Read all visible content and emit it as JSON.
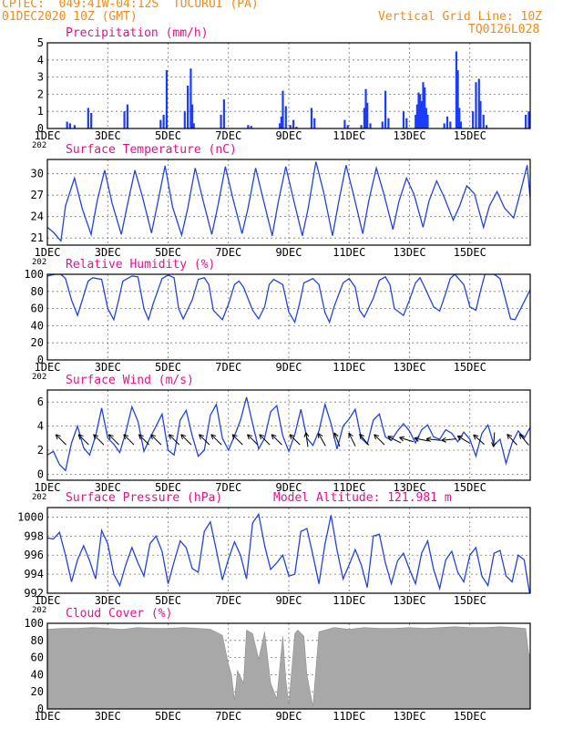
{
  "header": {
    "line1": "CPTEC:  049:41W-04:12S  TUCURUI (PA)",
    "line2": "01DEC2020 10Z (GMT)",
    "grid_note": "Vertical Grid Line: 10Z",
    "run_id": "TQ0126L028"
  },
  "colors": {
    "header": "#f28a18",
    "panel_title": "#e5108c",
    "series_line": "#2244dd",
    "precip_bar": "#1a3cff",
    "cloud_fill": "#a8a8a8",
    "wind_arrow": "#000000",
    "grid": "#777777"
  },
  "x_axis": {
    "start": "01DEC",
    "end": "16DEC",
    "tick_labels": [
      "1DEC",
      "3DEC",
      "5DEC",
      "7DEC",
      "9DEC",
      "11DEC",
      "13DEC",
      "15DEC"
    ],
    "tick_days": [
      0,
      2,
      4,
      6,
      8,
      10,
      12,
      14
    ],
    "clipped_year_label": "202"
  },
  "chart_data": [
    {
      "type": "bar",
      "title": "Precipitation (mm/h)",
      "ylim": [
        0,
        5
      ],
      "yticks": [
        0,
        1,
        2,
        3,
        4,
        5
      ],
      "x_unit": "days after 01DEC 10Z",
      "x": [
        0.65,
        0.75,
        0.9,
        1.35,
        1.45,
        2.55,
        2.65,
        3.75,
        3.85,
        3.95,
        4.55,
        4.65,
        4.75,
        4.8,
        4.85,
        5.75,
        5.85,
        6.65,
        6.75,
        7.7,
        7.75,
        7.8,
        7.9,
        8.05,
        8.15,
        8.25,
        8.75,
        8.85,
        9.85,
        9.95,
        10.4,
        10.5,
        10.55,
        10.6,
        10.7,
        11.1,
        11.2,
        11.3,
        11.8,
        11.9,
        12.2,
        12.25,
        12.3,
        12.35,
        12.4,
        12.45,
        12.5,
        12.55,
        12.6,
        13.15,
        13.25,
        13.35,
        13.55,
        13.6,
        13.65,
        13.7,
        14.1,
        14.2,
        14.3,
        14.35,
        14.45,
        14.55,
        15.85,
        15.95
      ],
      "values": [
        0.4,
        0.3,
        0.2,
        1.2,
        0.9,
        1.0,
        1.4,
        0.5,
        0.8,
        3.4,
        1.0,
        2.5,
        3.5,
        1.4,
        0.3,
        0.8,
        1.7,
        0.2,
        0.15,
        0.3,
        0.7,
        2.2,
        1.3,
        0.2,
        0.5,
        0.1,
        1.2,
        0.6,
        0.5,
        0.2,
        0.2,
        1.2,
        2.3,
        1.5,
        0.3,
        0.4,
        2.2,
        0.6,
        1.0,
        0.6,
        0.8,
        1.4,
        2.1,
        2.0,
        1.6,
        2.7,
        2.4,
        1.2,
        0.8,
        0.3,
        0.7,
        0.4,
        4.5,
        3.4,
        1.2,
        0.4,
        1.0,
        2.7,
        2.9,
        1.6,
        0.8,
        0.2,
        0.8,
        1.0
      ]
    },
    {
      "type": "line",
      "title": "Surface Temperature (nC)",
      "ylim": [
        20,
        32
      ],
      "yticks": [
        21,
        24,
        27,
        30
      ],
      "series": [
        {
          "x": [
            0,
            0.2,
            0.4,
            0.45,
            0.6,
            0.9,
            1.15,
            1.45,
            1.65,
            1.9,
            2.15,
            2.45,
            2.65,
            2.9,
            3.15,
            3.45,
            3.65,
            3.9,
            4.15,
            4.45,
            4.65,
            4.9,
            5.15,
            5.45,
            5.65,
            5.9,
            6.15,
            6.45,
            6.65,
            6.9,
            7.15,
            7.45,
            7.65,
            7.9,
            8.15,
            8.45,
            8.65,
            8.9,
            9.15,
            9.45,
            9.65,
            9.9,
            10.15,
            10.45,
            10.65,
            10.9,
            11.15,
            11.45,
            11.65,
            11.9,
            12.15,
            12.45,
            12.65,
            12.9,
            13.15,
            13.45,
            13.65,
            13.9,
            14.15,
            14.45,
            14.65,
            14.9,
            15.15,
            15.45,
            15.65,
            15.9,
            16
          ],
          "y": [
            22.5,
            21.8,
            20.8,
            20.6,
            25.5,
            29.4,
            25.2,
            21.5,
            26.2,
            30.5,
            25.8,
            21.5,
            25.6,
            30.5,
            26.8,
            21.7,
            25.8,
            31.1,
            25.3,
            21.4,
            25.1,
            30.8,
            26.4,
            21.5,
            25.5,
            31.0,
            26.5,
            21.6,
            25.2,
            30.8,
            26.5,
            21.3,
            26.0,
            31.0,
            26.5,
            21.3,
            25.3,
            31.7,
            27.5,
            21.3,
            26.0,
            31.2,
            27.0,
            21.6,
            26.2,
            30.8,
            27.2,
            22.2,
            26.1,
            29.4,
            27.1,
            22.5,
            26.2,
            29.0,
            26.7,
            23.5,
            25.4,
            28.3,
            27.2,
            22.5,
            25.5,
            27.5,
            25.2,
            23.8,
            27.0,
            31.2,
            26.5
          ]
        }
      ]
    },
    {
      "type": "line",
      "title": "Relative Humidity (%)",
      "ylim": [
        0,
        100
      ],
      "yticks": [
        0,
        20,
        40,
        60,
        80,
        100
      ],
      "series": [
        {
          "x": [
            0,
            0.25,
            0.45,
            0.6,
            0.8,
            1.0,
            1.2,
            1.35,
            1.5,
            1.8,
            2.0,
            2.2,
            2.35,
            2.5,
            2.8,
            3.0,
            3.2,
            3.35,
            3.5,
            3.8,
            4.0,
            4.2,
            4.35,
            4.5,
            4.8,
            5.0,
            5.2,
            5.35,
            5.5,
            5.8,
            6.0,
            6.2,
            6.35,
            6.5,
            6.8,
            7.0,
            7.2,
            7.35,
            7.5,
            7.8,
            8.0,
            8.2,
            8.35,
            8.5,
            8.8,
            9.0,
            9.2,
            9.35,
            9.5,
            9.8,
            10.0,
            10.2,
            10.35,
            10.5,
            10.8,
            11.0,
            11.2,
            11.35,
            11.5,
            11.8,
            12.0,
            12.2,
            12.35,
            12.5,
            12.8,
            13.0,
            13.2,
            13.35,
            13.5,
            13.8,
            14.0,
            14.2,
            14.35,
            14.5,
            14.8,
            15.0,
            15.2,
            15.35,
            15.5,
            15.8,
            16.0
          ],
          "y": [
            98,
            100,
            100,
            95,
            70,
            52,
            75,
            92,
            96,
            94,
            60,
            47,
            68,
            92,
            98,
            97,
            60,
            47,
            65,
            95,
            99,
            96,
            60,
            48,
            70,
            94,
            96,
            88,
            58,
            47,
            65,
            88,
            92,
            85,
            58,
            48,
            62,
            88,
            94,
            88,
            56,
            44,
            65,
            90,
            95,
            88,
            55,
            44,
            62,
            90,
            95,
            85,
            58,
            50,
            72,
            93,
            97,
            88,
            60,
            52,
            70,
            90,
            96,
            85,
            62,
            57,
            78,
            95,
            100,
            88,
            62,
            58,
            80,
            100,
            100,
            95,
            68,
            48,
            47,
            68,
            82
          ]
        }
      ]
    },
    {
      "type": "line",
      "title": "Surface Wind (m/s)",
      "ylim": [
        -0.5,
        7
      ],
      "yticks": [
        0,
        2,
        4,
        6
      ],
      "series": [
        {
          "x": [
            0,
            0.2,
            0.4,
            0.6,
            0.8,
            1.0,
            1.2,
            1.4,
            1.6,
            1.8,
            2.0,
            2.2,
            2.4,
            2.6,
            2.8,
            3.0,
            3.2,
            3.4,
            3.6,
            3.8,
            4.0,
            4.2,
            4.4,
            4.6,
            4.8,
            5.0,
            5.2,
            5.4,
            5.6,
            5.8,
            6.0,
            6.2,
            6.4,
            6.6,
            6.8,
            7.0,
            7.2,
            7.4,
            7.6,
            7.8,
            8.0,
            8.2,
            8.4,
            8.6,
            8.8,
            9.0,
            9.2,
            9.4,
            9.6,
            9.8,
            10.0,
            10.2,
            10.4,
            10.6,
            10.8,
            11.0,
            11.2,
            11.4,
            11.6,
            11.8,
            12.0,
            12.2,
            12.4,
            12.6,
            12.8,
            13.0,
            13.2,
            13.4,
            13.6,
            13.8,
            14.0,
            14.2,
            14.4,
            14.6,
            14.8,
            15.0,
            15.2,
            15.4,
            15.6,
            15.8,
            16.0
          ],
          "y": [
            1.6,
            1.9,
            0.8,
            0.3,
            2.6,
            4.0,
            2.2,
            1.6,
            3.2,
            5.5,
            3.0,
            2.5,
            1.8,
            3.5,
            5.6,
            4.4,
            1.9,
            3.0,
            4.0,
            5.0,
            2.0,
            1.6,
            4.5,
            5.3,
            3.2,
            1.5,
            2.0,
            4.9,
            5.8,
            3.0,
            2.0,
            3.2,
            4.5,
            6.4,
            4.2,
            2.1,
            3.0,
            5.2,
            5.7,
            3.2,
            1.9,
            3.3,
            5.4,
            3.0,
            2.4,
            3.6,
            5.8,
            4.2,
            2.1,
            4.0,
            4.6,
            5.4,
            3.0,
            2.5,
            4.5,
            5.0,
            3.1,
            2.8,
            3.6,
            4.2,
            3.6,
            2.6,
            3.7,
            4.1,
            3.1,
            2.9,
            3.7,
            3.4,
            2.7,
            3.5,
            2.9,
            1.5,
            3.4,
            4.1,
            2.4,
            2.9,
            0.9,
            2.6,
            3.6,
            3.0,
            3.9
          ]
        }
      ],
      "wind_vectors": {
        "x": [
          0.45,
          1.2,
          1.7,
          2.2,
          2.7,
          3.2,
          3.6,
          4.2,
          4.6,
          5.2,
          5.6,
          6.3,
          6.8,
          7.2,
          7.6,
          8.2,
          8.6,
          9.1,
          9.6,
          10.1,
          10.5,
          11.0,
          11.5,
          11.9,
          12.4,
          12.8,
          13.3,
          13.8,
          14.3,
          14.8,
          15.4,
          15.8
        ],
        "dx": [
          1,
          1,
          1,
          1,
          1,
          1,
          1,
          1,
          1,
          1,
          1,
          1,
          1,
          1,
          1,
          1,
          0.2,
          0.9,
          0.7,
          0.8,
          1,
          1,
          1,
          1,
          1,
          1,
          1,
          1,
          1,
          0.1,
          1,
          1
        ],
        "dy": [
          1,
          1,
          1,
          1,
          1,
          1,
          1,
          1,
          1,
          1,
          1,
          1,
          1,
          1,
          1,
          1,
          1.4,
          1.6,
          1.8,
          1.6,
          1.2,
          1.0,
          0.5,
          0.3,
          0.2,
          0.1,
          -0.1,
          0.6,
          0.9,
          -1.4,
          1.1,
          1.2
        ]
      }
    },
    {
      "type": "line",
      "title": "Surface Pressure (hPa)",
      "subtitle": "Model Altitude: 121.981  m",
      "ylim": [
        992,
        1001
      ],
      "yticks": [
        992,
        994,
        996,
        998,
        1000
      ],
      "series": [
        {
          "x": [
            0,
            0.2,
            0.4,
            0.6,
            0.8,
            1.0,
            1.2,
            1.4,
            1.6,
            1.8,
            2.0,
            2.2,
            2.4,
            2.6,
            2.8,
            3.0,
            3.2,
            3.4,
            3.6,
            3.8,
            4.0,
            4.2,
            4.4,
            4.6,
            4.8,
            5.0,
            5.2,
            5.4,
            5.6,
            5.8,
            6.0,
            6.2,
            6.4,
            6.6,
            6.8,
            7.0,
            7.2,
            7.4,
            7.6,
            7.8,
            8.0,
            8.2,
            8.4,
            8.6,
            8.8,
            9.0,
            9.2,
            9.4,
            9.6,
            9.8,
            10.0,
            10.2,
            10.4,
            10.6,
            10.8,
            11.0,
            11.2,
            11.4,
            11.6,
            11.8,
            12.0,
            12.2,
            12.4,
            12.6,
            12.8,
            13.0,
            13.2,
            13.4,
            13.6,
            13.8,
            14.0,
            14.2,
            14.4,
            14.6,
            14.8,
            15.0,
            15.2,
            15.4,
            15.6,
            15.8,
            16.0
          ],
          "y": [
            997.8,
            997.7,
            998.4,
            996.0,
            993.2,
            995.5,
            997.0,
            995.4,
            993.5,
            998.6,
            997.2,
            994.0,
            992.8,
            995.0,
            996.8,
            995.2,
            993.8,
            997.2,
            998.0,
            996.4,
            993.0,
            995.3,
            997.5,
            996.8,
            994.6,
            994.2,
            998.5,
            999.5,
            996.5,
            993.4,
            995.6,
            997.4,
            996.0,
            993.5,
            999.4,
            1000.3,
            997.0,
            994.5,
            995.2,
            996.0,
            993.8,
            994.0,
            998.5,
            998.8,
            996.0,
            993.0,
            997.2,
            1000.2,
            996.5,
            993.5,
            995.0,
            996.6,
            995.0,
            992.6,
            998.0,
            998.2,
            995.2,
            993.0,
            995.4,
            996.2,
            994.5,
            993.0,
            996.2,
            997.5,
            994.5,
            992.5,
            995.5,
            996.4,
            994.2,
            993.2,
            996.0,
            996.8,
            993.8,
            992.8,
            996.2,
            996.5,
            993.8,
            993.2,
            996.0,
            995.5,
            991.6
          ]
        }
      ]
    },
    {
      "type": "area",
      "title": "Cloud Cover (%)",
      "ylim": [
        0,
        100
      ],
      "yticks": [
        0,
        20,
        40,
        60,
        80,
        100
      ],
      "series": [
        {
          "x": [
            0,
            0.5,
            1.0,
            1.5,
            2.0,
            2.5,
            3.0,
            3.5,
            4.0,
            4.5,
            5.0,
            5.4,
            5.8,
            6.0,
            6.1,
            6.2,
            6.3,
            6.5,
            6.6,
            6.8,
            7.0,
            7.2,
            7.4,
            7.6,
            7.8,
            7.9,
            8.0,
            8.2,
            8.3,
            8.5,
            8.6,
            8.8,
            9.0,
            9.5,
            10.0,
            10.5,
            11.0,
            11.5,
            12.0,
            12.5,
            13.0,
            13.5,
            14.0,
            14.5,
            15.0,
            15.5,
            15.85,
            15.95,
            16.0
          ],
          "y": [
            93,
            94,
            94,
            95,
            94,
            93,
            95,
            94,
            94,
            95,
            94,
            93,
            86,
            52,
            40,
            10,
            45,
            30,
            92,
            88,
            58,
            90,
            30,
            12,
            85,
            35,
            5,
            88,
            92,
            85,
            40,
            3,
            90,
            95,
            93,
            95,
            94,
            94,
            95,
            94,
            95,
            96,
            95,
            95,
            96,
            95,
            94,
            65,
            62
          ]
        }
      ]
    }
  ]
}
